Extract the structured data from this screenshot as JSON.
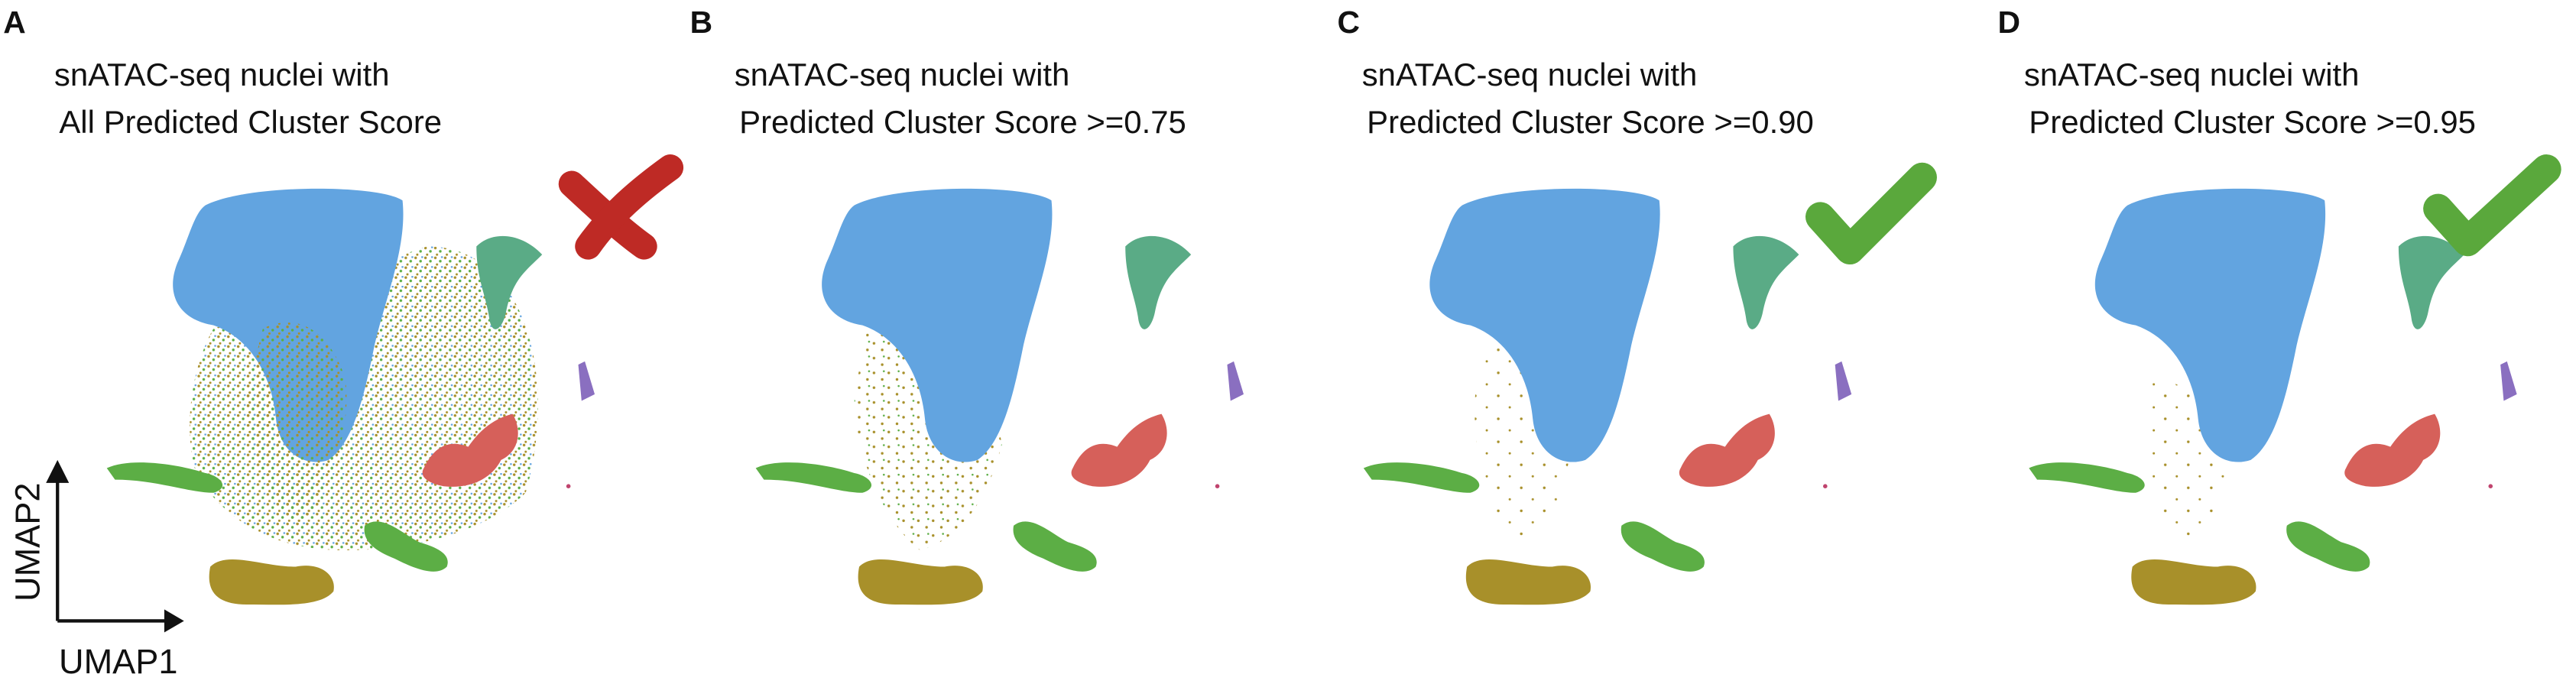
{
  "panels": [
    {
      "letter": "A",
      "title_lines": [
        "snATAC-seq nuclei with",
        "All Predicted Cluster Score"
      ]
    },
    {
      "letter": "B",
      "title_lines": [
        "snATAC-seq nuclei with",
        "Predicted Cluster Score >=0.75"
      ]
    },
    {
      "letter": "C",
      "title_lines": [
        "snATAC-seq nuclei with",
        "Predicted Cluster Score >=0.90"
      ]
    },
    {
      "letter": "D",
      "title_lines": [
        "snATAC-seq nuclei with",
        "Predicted Cluster Score >=0.95"
      ]
    }
  ],
  "axes": {
    "y_label": "UMAP2",
    "x_label": "UMAP1"
  }
}
